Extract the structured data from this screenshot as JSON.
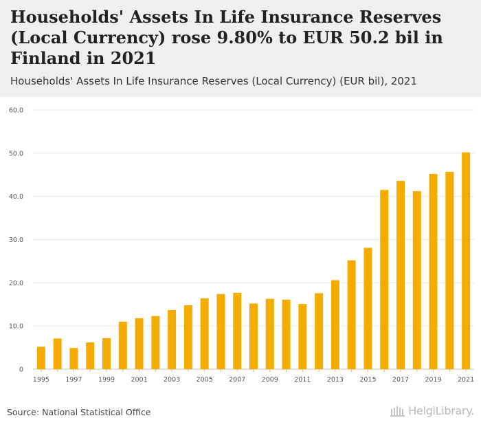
{
  "header": {
    "title": "Households' Assets In Life Insurance Reserves (Local Currency) rose 9.80% to EUR 50.2 bil in Finland in 2021",
    "subtitle": "Households' Assets In Life Insurance Reserves (Local Currency) (EUR bil), 2021"
  },
  "footer": {
    "source": "Source: National Statistical Office",
    "brand": "HelgiLibrary."
  },
  "colors": {
    "bar": "#f5ac00",
    "grid": "#e6e6e6",
    "axis_text": "#555555"
  },
  "chart_data": {
    "type": "bar",
    "title": "Households' Assets In Life Insurance Reserves (Local Currency) (EUR bil), 2021",
    "xlabel": "",
    "ylabel": "EUR bil",
    "ylim": [
      0,
      60
    ],
    "yticks": [
      0,
      10,
      20,
      30,
      40,
      50,
      60
    ],
    "ytick_labels": [
      "0",
      "10.0",
      "20.0",
      "30.0",
      "40.0",
      "50.0",
      "60.0"
    ],
    "categories": [
      "1995",
      "1996",
      "1997",
      "1998",
      "1999",
      "2000",
      "2001",
      "2002",
      "2003",
      "2004",
      "2005",
      "2006",
      "2007",
      "2008",
      "2009",
      "2010",
      "2011",
      "2012",
      "2013",
      "2014",
      "2015",
      "2016",
      "2017",
      "2018",
      "2019",
      "2020",
      "2021"
    ],
    "xtick_labels": [
      "1995",
      "",
      "1997",
      "",
      "1999",
      "",
      "2001",
      "",
      "2003",
      "",
      "2005",
      "",
      "2007",
      "",
      "2009",
      "",
      "2011",
      "",
      "2013",
      "",
      "2015",
      "",
      "2017",
      "",
      "2019",
      "",
      "2021"
    ],
    "values": [
      5.2,
      7.1,
      4.9,
      6.2,
      7.2,
      11.0,
      11.8,
      12.3,
      13.7,
      14.8,
      16.4,
      17.4,
      17.7,
      15.2,
      16.3,
      16.1,
      15.1,
      17.6,
      20.6,
      25.2,
      28.1,
      41.5,
      43.6,
      41.2,
      45.2,
      45.7,
      50.2
    ],
    "grid": true,
    "legend": "none"
  }
}
